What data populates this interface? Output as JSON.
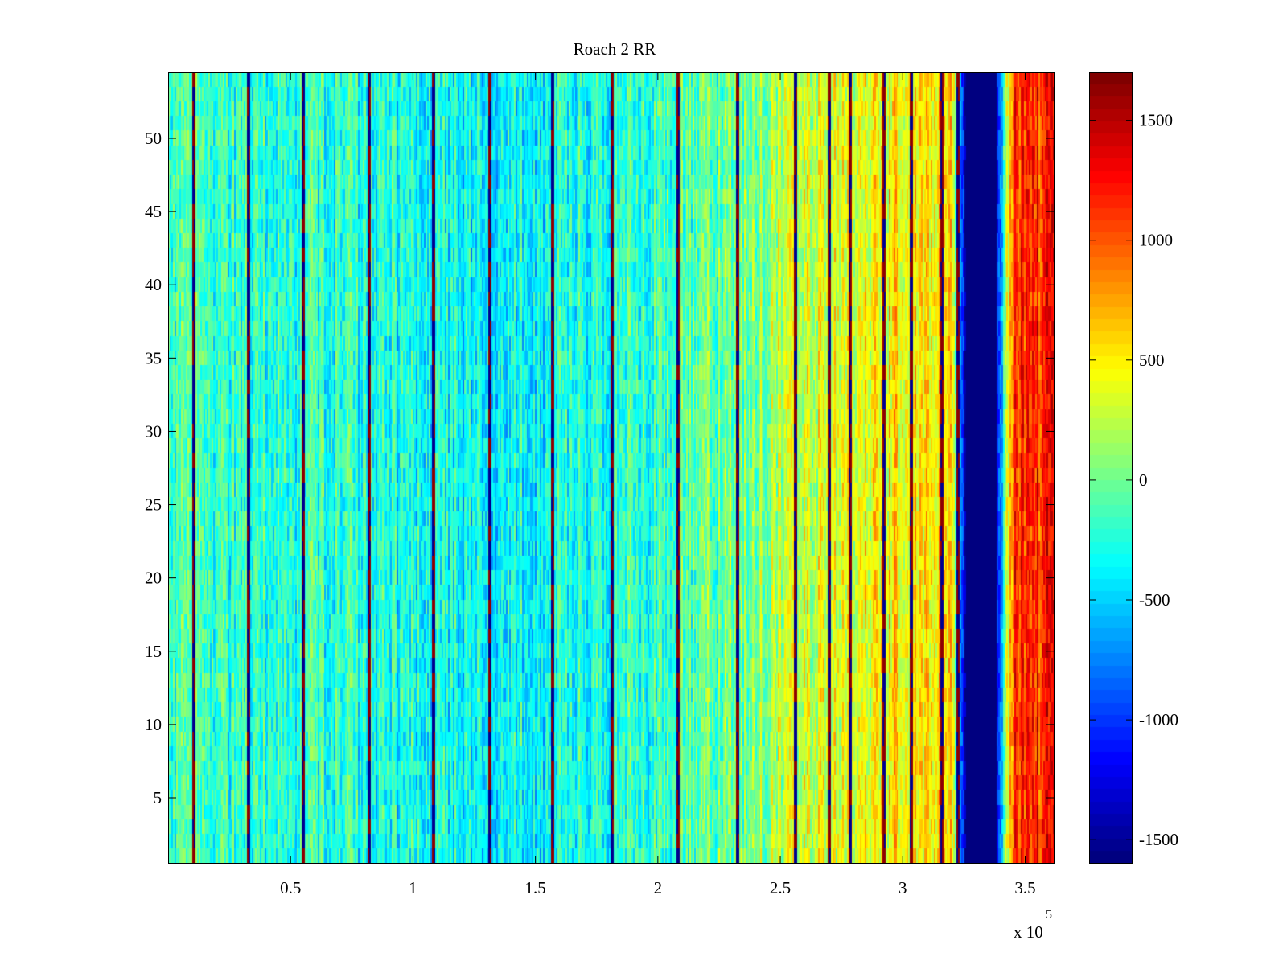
{
  "chart_data": {
    "type": "heatmap",
    "title": "Roach 2 RR",
    "xlabel": "",
    "ylabel": "",
    "x_exponent_label": {
      "base": "x 10",
      "exponent": "5"
    },
    "xlim": [
      0,
      362000
    ],
    "ylim": [
      0.5,
      54.5
    ],
    "x_ticks": [
      0.5,
      1,
      1.5,
      2,
      2.5,
      3,
      3.5
    ],
    "x_tick_labels": [
      "0.5",
      "1",
      "1.5",
      "2",
      "2.5",
      "3",
      "3.5"
    ],
    "y_ticks": [
      5,
      10,
      15,
      20,
      25,
      30,
      35,
      40,
      45,
      50
    ],
    "y_tick_labels": [
      "5",
      "10",
      "15",
      "20",
      "25",
      "30",
      "35",
      "40",
      "45",
      "50"
    ],
    "rows": 54,
    "colormap": "jet",
    "clim": [
      -1600,
      1700
    ],
    "colorbar": {
      "ticks": [
        1500,
        1000,
        500,
        0,
        -500,
        -1000,
        -1500
      ],
      "tick_labels": [
        "1500",
        "1000",
        "500",
        "0",
        "-500",
        "-1000",
        "-1500"
      ]
    },
    "column_trend": {
      "x": [
        0,
        30000,
        60000,
        90000,
        120000,
        150000,
        180000,
        210000,
        240000,
        260000,
        280000,
        300000,
        320000,
        326000,
        338000,
        345000,
        362000
      ],
      "mean_value": [
        -180,
        -200,
        -230,
        -300,
        -350,
        -340,
        -280,
        -120,
        80,
        320,
        400,
        520,
        650,
        -1600,
        -1600,
        1100,
        1250
      ]
    },
    "vertical_stripes": [
      10000,
      32500,
      55000,
      82000,
      108000,
      131000,
      157000,
      181000,
      208000,
      232000,
      256000,
      270000,
      278000,
      292000,
      303000,
      316000,
      322000
    ]
  }
}
